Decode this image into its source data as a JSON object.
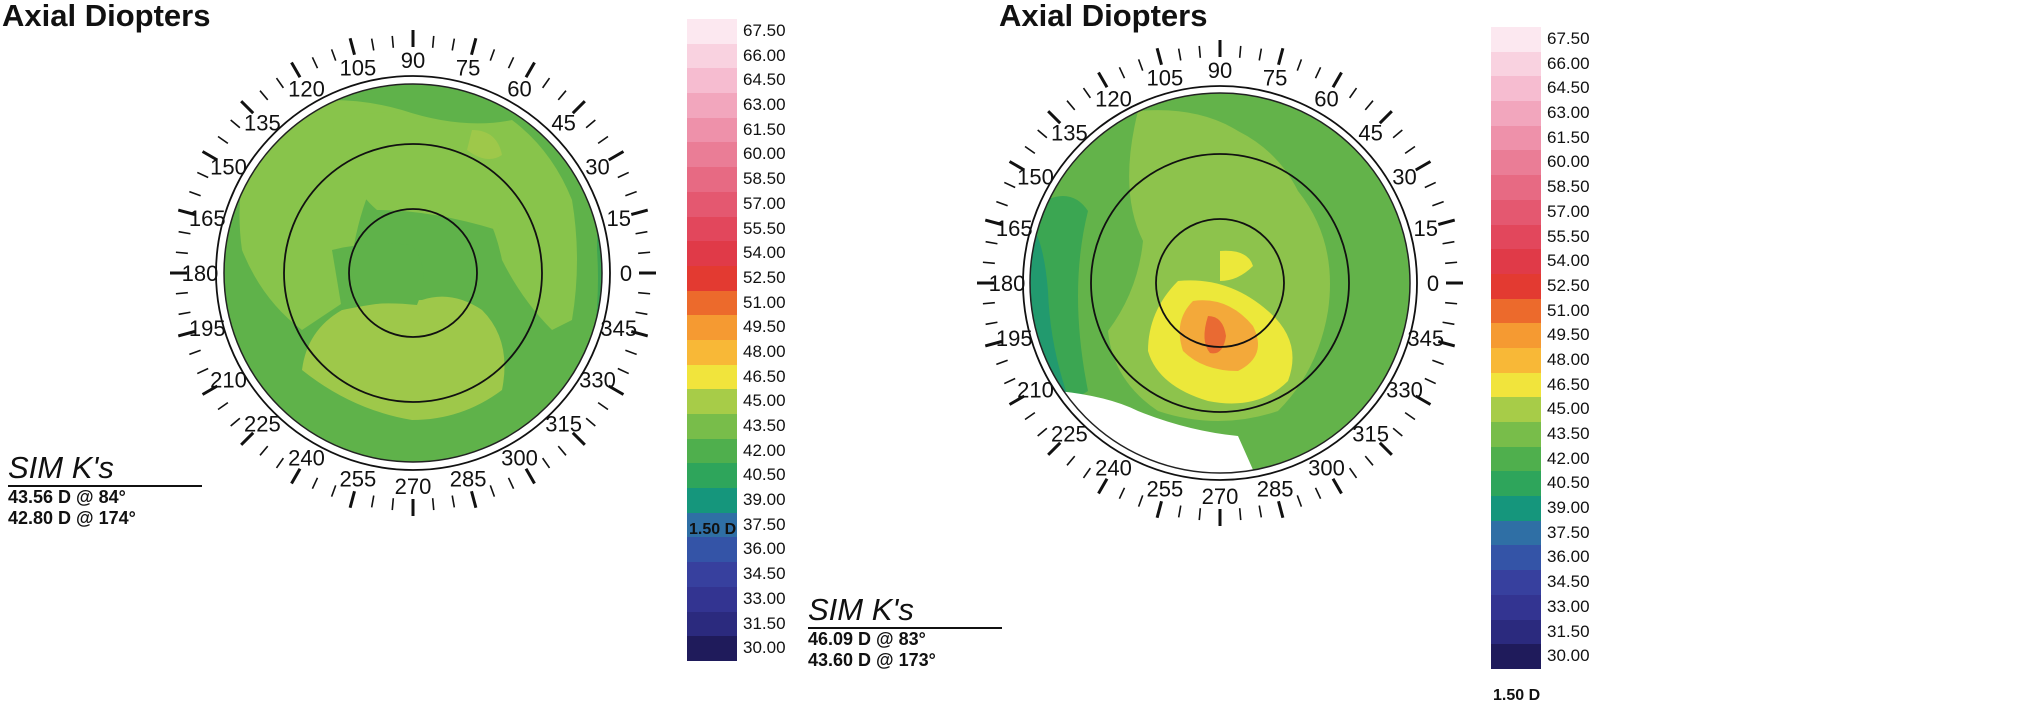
{
  "maps": [
    {
      "title": "Axial Diopters",
      "sim_k": {
        "heading": "SIM K's",
        "lines": [
          "43.56 D @ 84°",
          "42.80 D @ 174°"
        ]
      },
      "scale_step": "1.50 D",
      "colors": {
        "base": "#5fb24a",
        "lighter": "#88c44b",
        "lightest": "#9ec84a",
        "darker": "#3fa552"
      }
    },
    {
      "title": "Axial Diopters",
      "sim_k": {
        "heading": "SIM K's",
        "lines": [
          "46.09 D @ 83°",
          "43.60 D @ 173°"
        ]
      },
      "scale_step": "1.50 D",
      "colors": {
        "base": "#63b34a",
        "lighter": "#8dc34c",
        "yellow": "#ece83a",
        "orange": "#f3a93a",
        "red": "#e96a33",
        "teal": "#229a6e",
        "darker": "#3ba652"
      }
    }
  ],
  "angle_labels": [
    "0",
    "15",
    "30",
    "45",
    "60",
    "75",
    "90",
    "105",
    "120",
    "135",
    "150",
    "165",
    "180",
    "195",
    "210",
    "225",
    "240",
    "255",
    "270",
    "285",
    "300",
    "315",
    "330",
    "345"
  ],
  "scale": [
    {
      "value": "67.50",
      "color": "#fce8f0"
    },
    {
      "value": "66.00",
      "color": "#f9d2e0"
    },
    {
      "value": "64.50",
      "color": "#f6bcd0"
    },
    {
      "value": "63.00",
      "color": "#f2a6bd"
    },
    {
      "value": "61.50",
      "color": "#ee91aa"
    },
    {
      "value": "60.00",
      "color": "#ea7d96"
    },
    {
      "value": "58.50",
      "color": "#e76a83"
    },
    {
      "value": "57.00",
      "color": "#e45870"
    },
    {
      "value": "55.50",
      "color": "#e2475c"
    },
    {
      "value": "54.00",
      "color": "#e03a48"
    },
    {
      "value": "52.50",
      "color": "#e33a31"
    },
    {
      "value": "51.00",
      "color": "#ec6a2c"
    },
    {
      "value": "49.50",
      "color": "#f59a32"
    },
    {
      "value": "48.00",
      "color": "#f8b837"
    },
    {
      "value": "46.50",
      "color": "#f1e43c"
    },
    {
      "value": "45.00",
      "color": "#a7cc48"
    },
    {
      "value": "43.50",
      "color": "#78bd4a"
    },
    {
      "value": "42.00",
      "color": "#4faf4d"
    },
    {
      "value": "40.50",
      "color": "#2ea55b"
    },
    {
      "value": "39.00",
      "color": "#15967c"
    },
    {
      "value": "37.50",
      "color": "#2f6fa5"
    },
    {
      "value": "36.00",
      "color": "#3454a7"
    },
    {
      "value": "34.50",
      "color": "#37409e"
    },
    {
      "value": "33.00",
      "color": "#333491"
    },
    {
      "value": "31.50",
      "color": "#2b2a7e"
    },
    {
      "value": "30.00",
      "color": "#1f1b5b"
    }
  ]
}
